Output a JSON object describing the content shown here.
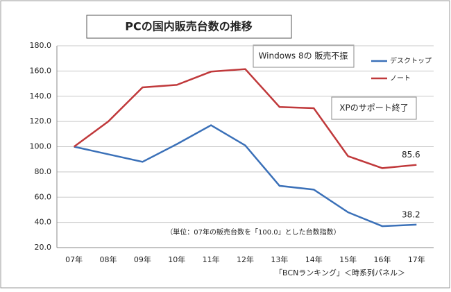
{
  "chart_data": {
    "type": "line",
    "title": "PCの国内販売台数の推移",
    "categories": [
      "07年",
      "08年",
      "09年",
      "10年",
      "11年",
      "12年",
      "13年",
      "14年",
      "15年",
      "16年",
      "17年"
    ],
    "series": [
      {
        "name": "デスクトップ",
        "color": "#3a70b8",
        "values": [
          100,
          94,
          88,
          102,
          117,
          101,
          69,
          66,
          48,
          37,
          38.2
        ]
      },
      {
        "name": "ノート",
        "color": "#c0393b",
        "values": [
          100,
          120,
          147,
          149,
          159.5,
          161.5,
          131.5,
          130.5,
          92.5,
          83,
          85.6
        ]
      }
    ],
    "ylim": [
      20,
      180
    ],
    "yticks": [
      {
        "value": 20,
        "label": "20.0"
      },
      {
        "value": 40,
        "label": "40.0"
      },
      {
        "value": 60,
        "label": "60.0"
      },
      {
        "value": 80,
        "label": "80.0"
      },
      {
        "value": 100,
        "label": "100.0"
      },
      {
        "value": 120,
        "label": "120.0"
      },
      {
        "value": 140,
        "label": "140.0"
      },
      {
        "value": 160,
        "label": "160.0"
      },
      {
        "value": 180,
        "label": "180.0"
      }
    ],
    "grid": true,
    "annotations": [
      "Windows 8の 販売不振",
      "XPのサポート終了",
      "（単位：07年の販売台数を「100.0」とした台数指数）"
    ],
    "source": "「BCNランキング」＜時系列パネル＞"
  }
}
